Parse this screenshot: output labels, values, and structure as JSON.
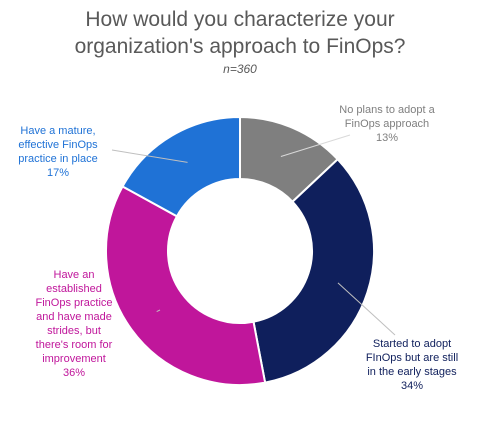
{
  "title_lines": [
    "How would you characterize your",
    "organization's approach to FinOps?"
  ],
  "subtitle": "n=360",
  "chart_data": {
    "type": "pie",
    "donut": true,
    "total_n": 360,
    "categories": [
      "No plans to adopt a FinOps approach",
      "Started to adopt FInOps but are still in the early stages",
      "Have an established FinOps practice and have made strides, but there's room for improvement",
      "Have a mature, effective FinOps practice in place"
    ],
    "values": [
      13,
      34,
      36,
      17
    ],
    "colors": [
      "#7f7f7f",
      "#0f1f5c",
      "#c0169b",
      "#1f72d6"
    ],
    "labels": [
      {
        "lines": [
          "No plans to adopt a",
          "FinOps approach"
        ],
        "pct": "13%",
        "color": "#7f7f7f"
      },
      {
        "lines": [
          "Started to adopt",
          "FInOps but are still",
          "in the early stages"
        ],
        "pct": "34%",
        "color": "#0f1f5c"
      },
      {
        "lines": [
          "Have an",
          "established",
          "FinOps practice",
          "and have made",
          "strides, but",
          "there's room for",
          "improvement"
        ],
        "pct": "36%",
        "color": "#c0169b"
      },
      {
        "lines": [
          "Have a mature,",
          "effective FinOps",
          "practice in place"
        ],
        "pct": "17%",
        "color": "#1f72d6"
      }
    ]
  }
}
